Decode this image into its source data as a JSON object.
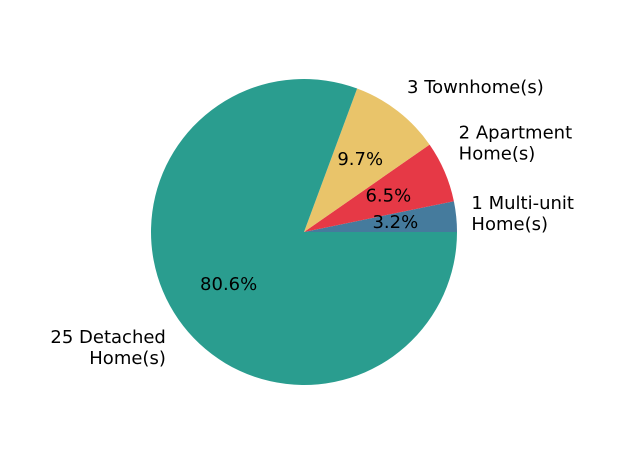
{
  "chart_data": {
    "type": "pie",
    "slices": [
      {
        "label": [
          "1 Multi-unit",
          "Home(s)"
        ],
        "value": 1,
        "pct": "3.2%",
        "color": "#457b9d"
      },
      {
        "label": [
          "2 Apartment",
          "Home(s)"
        ],
        "value": 2,
        "pct": "6.5%",
        "color": "#e63946"
      },
      {
        "label": [
          "3 Townhome(s)"
        ],
        "value": 3,
        "pct": "9.7%",
        "color": "#e9c46a"
      },
      {
        "label": [
          "25 Detached",
          "Home(s)"
        ],
        "value": 25,
        "pct": "80.6%",
        "color": "#2a9d8f"
      }
    ],
    "start_angle_deg": 0,
    "direction": "counterclockwise"
  }
}
